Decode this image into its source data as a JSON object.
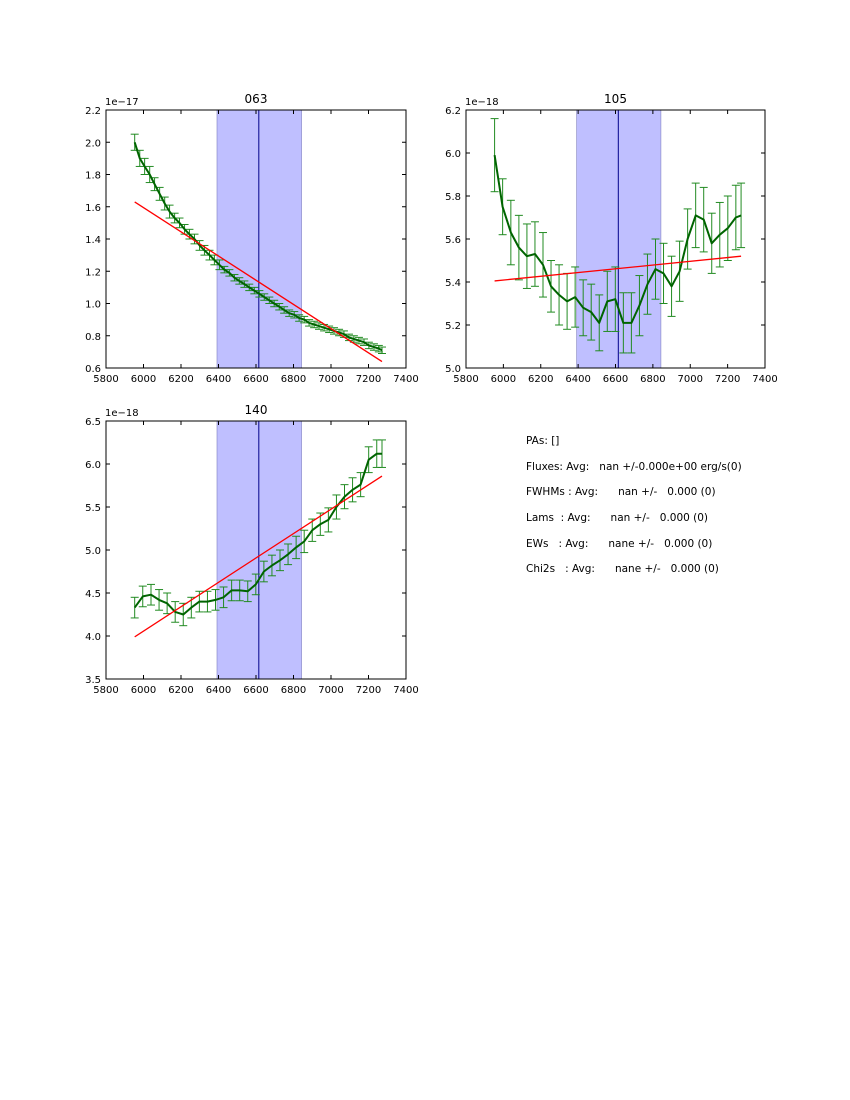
{
  "stats": {
    "lines": [
      "PAs: []",
      "Fluxes: Avg:   nan +/-0.000e+00 erg/s(0)",
      "FWHMs : Avg:      nan +/-   0.000 (0)",
      "Lams  : Avg:      nan +/-   0.000 (0)",
      "EWs   : Avg:      nane +/-   0.000 (0)",
      "Chi2s   : Avg:      nane +/-   0.000 (0)"
    ]
  },
  "colors": {
    "data_line": "#006400",
    "errorbar": "#228b22",
    "fit_line": "#ff0000",
    "band_fill": "#bfbfff",
    "center_line": "#00008b"
  },
  "chart_data": [
    {
      "type": "line",
      "title": "063",
      "offset_label": "1e−17",
      "xlim": [
        5800,
        7400
      ],
      "ylim": [
        0.6,
        2.2
      ],
      "xticks": [
        5800,
        6000,
        6200,
        6400,
        6600,
        6800,
        7000,
        7200,
        7400
      ],
      "yticks": [
        0.6,
        0.8,
        1.0,
        1.2,
        1.4,
        1.6,
        1.8,
        2.0,
        2.2
      ],
      "ytick_decimals": 1,
      "band": [
        6392,
        6843
      ],
      "center": 6615,
      "series": [
        {
          "x": [
            5953,
            5980,
            6006,
            6033,
            6059,
            6086,
            6113,
            6139,
            6166,
            6192,
            6219,
            6245,
            6272,
            6299,
            6325,
            6352,
            6378,
            6405,
            6431,
            6458,
            6485,
            6511,
            6538,
            6564,
            6591,
            6618,
            6644,
            6671,
            6697,
            6724,
            6750,
            6777,
            6804,
            6830,
            6857,
            6883,
            6910,
            6936,
            6963,
            6990,
            7016,
            7043,
            7069,
            7096,
            7122,
            7149,
            7176,
            7202,
            7229,
            7255,
            7272
          ],
          "y": [
            2.0,
            1.9,
            1.85,
            1.8,
            1.74,
            1.68,
            1.62,
            1.57,
            1.53,
            1.5,
            1.46,
            1.43,
            1.4,
            1.36,
            1.33,
            1.3,
            1.27,
            1.24,
            1.21,
            1.19,
            1.16,
            1.14,
            1.12,
            1.1,
            1.08,
            1.06,
            1.04,
            1.02,
            1.0,
            0.98,
            0.96,
            0.94,
            0.93,
            0.91,
            0.9,
            0.88,
            0.87,
            0.86,
            0.85,
            0.84,
            0.83,
            0.82,
            0.81,
            0.79,
            0.78,
            0.77,
            0.76,
            0.74,
            0.73,
            0.72,
            0.71
          ],
          "err": [
            0.05,
            0.05,
            0.05,
            0.05,
            0.04,
            0.04,
            0.04,
            0.04,
            0.03,
            0.03,
            0.03,
            0.03,
            0.03,
            0.03,
            0.03,
            0.03,
            0.03,
            0.03,
            0.02,
            0.02,
            0.02,
            0.02,
            0.02,
            0.02,
            0.02,
            0.02,
            0.02,
            0.02,
            0.02,
            0.02,
            0.02,
            0.02,
            0.02,
            0.02,
            0.02,
            0.02,
            0.02,
            0.02,
            0.02,
            0.02,
            0.02,
            0.02,
            0.02,
            0.02,
            0.02,
            0.02,
            0.02,
            0.02,
            0.02,
            0.02,
            0.02
          ]
        }
      ],
      "fit": {
        "x": [
          5953,
          7272
        ],
        "y": [
          1.63,
          0.64
        ]
      }
    },
    {
      "type": "line",
      "title": "105",
      "offset_label": "1e−18",
      "xlim": [
        5800,
        7400
      ],
      "ylim": [
        5.0,
        6.2
      ],
      "xticks": [
        5800,
        6000,
        6200,
        6400,
        6600,
        6800,
        7000,
        7200,
        7400
      ],
      "yticks": [
        5.0,
        5.2,
        5.4,
        5.6,
        5.8,
        6.0,
        6.2
      ],
      "ytick_decimals": 1,
      "band": [
        6392,
        6843
      ],
      "center": 6615,
      "series": [
        {
          "x": [
            5953,
            5996,
            6040,
            6083,
            6126,
            6169,
            6212,
            6255,
            6298,
            6341,
            6384,
            6427,
            6470,
            6513,
            6556,
            6599,
            6642,
            6685,
            6728,
            6771,
            6814,
            6857,
            6900,
            6943,
            6986,
            7029,
            7072,
            7115,
            7158,
            7201,
            7244,
            7272
          ],
          "y": [
            5.99,
            5.75,
            5.63,
            5.56,
            5.52,
            5.53,
            5.48,
            5.38,
            5.34,
            5.31,
            5.33,
            5.28,
            5.26,
            5.21,
            5.31,
            5.32,
            5.21,
            5.21,
            5.29,
            5.39,
            5.46,
            5.44,
            5.38,
            5.45,
            5.6,
            5.71,
            5.69,
            5.58,
            5.62,
            5.65,
            5.7,
            5.71
          ],
          "err": [
            0.17,
            0.13,
            0.15,
            0.15,
            0.15,
            0.15,
            0.15,
            0.12,
            0.14,
            0.13,
            0.14,
            0.13,
            0.13,
            0.13,
            0.14,
            0.15,
            0.14,
            0.14,
            0.14,
            0.14,
            0.14,
            0.14,
            0.14,
            0.14,
            0.14,
            0.15,
            0.15,
            0.14,
            0.15,
            0.15,
            0.15,
            0.15
          ]
        }
      ],
      "fit": {
        "x": [
          5953,
          7272
        ],
        "y": [
          5.405,
          5.52
        ]
      }
    },
    {
      "type": "line",
      "title": "140",
      "offset_label": "1e−18",
      "xlim": [
        5800,
        7400
      ],
      "ylim": [
        3.5,
        6.5
      ],
      "xticks": [
        5800,
        6000,
        6200,
        6400,
        6600,
        6800,
        7000,
        7200,
        7400
      ],
      "yticks": [
        3.5,
        4.0,
        4.5,
        5.0,
        5.5,
        6.0,
        6.5
      ],
      "ytick_decimals": 1,
      "band": [
        6392,
        6843
      ],
      "center": 6615,
      "series": [
        {
          "x": [
            5953,
            5996,
            6040,
            6083,
            6126,
            6169,
            6212,
            6255,
            6298,
            6341,
            6384,
            6427,
            6470,
            6513,
            6556,
            6599,
            6642,
            6685,
            6728,
            6771,
            6814,
            6857,
            6900,
            6943,
            6986,
            7029,
            7072,
            7115,
            7158,
            7201,
            7244,
            7272
          ],
          "y": [
            4.33,
            4.46,
            4.48,
            4.42,
            4.38,
            4.28,
            4.25,
            4.33,
            4.4,
            4.4,
            4.42,
            4.45,
            4.53,
            4.53,
            4.52,
            4.6,
            4.75,
            4.82,
            4.88,
            4.95,
            5.03,
            5.1,
            5.23,
            5.3,
            5.35,
            5.5,
            5.62,
            5.7,
            5.76,
            6.05,
            6.12,
            6.12
          ],
          "err": [
            0.12,
            0.12,
            0.12,
            0.12,
            0.12,
            0.12,
            0.13,
            0.12,
            0.12,
            0.12,
            0.12,
            0.12,
            0.12,
            0.12,
            0.12,
            0.12,
            0.12,
            0.12,
            0.12,
            0.12,
            0.13,
            0.13,
            0.13,
            0.13,
            0.14,
            0.14,
            0.14,
            0.14,
            0.14,
            0.15,
            0.16,
            0.16
          ]
        }
      ],
      "fit": {
        "x": [
          5953,
          7272
        ],
        "y": [
          3.99,
          5.86
        ]
      }
    }
  ]
}
